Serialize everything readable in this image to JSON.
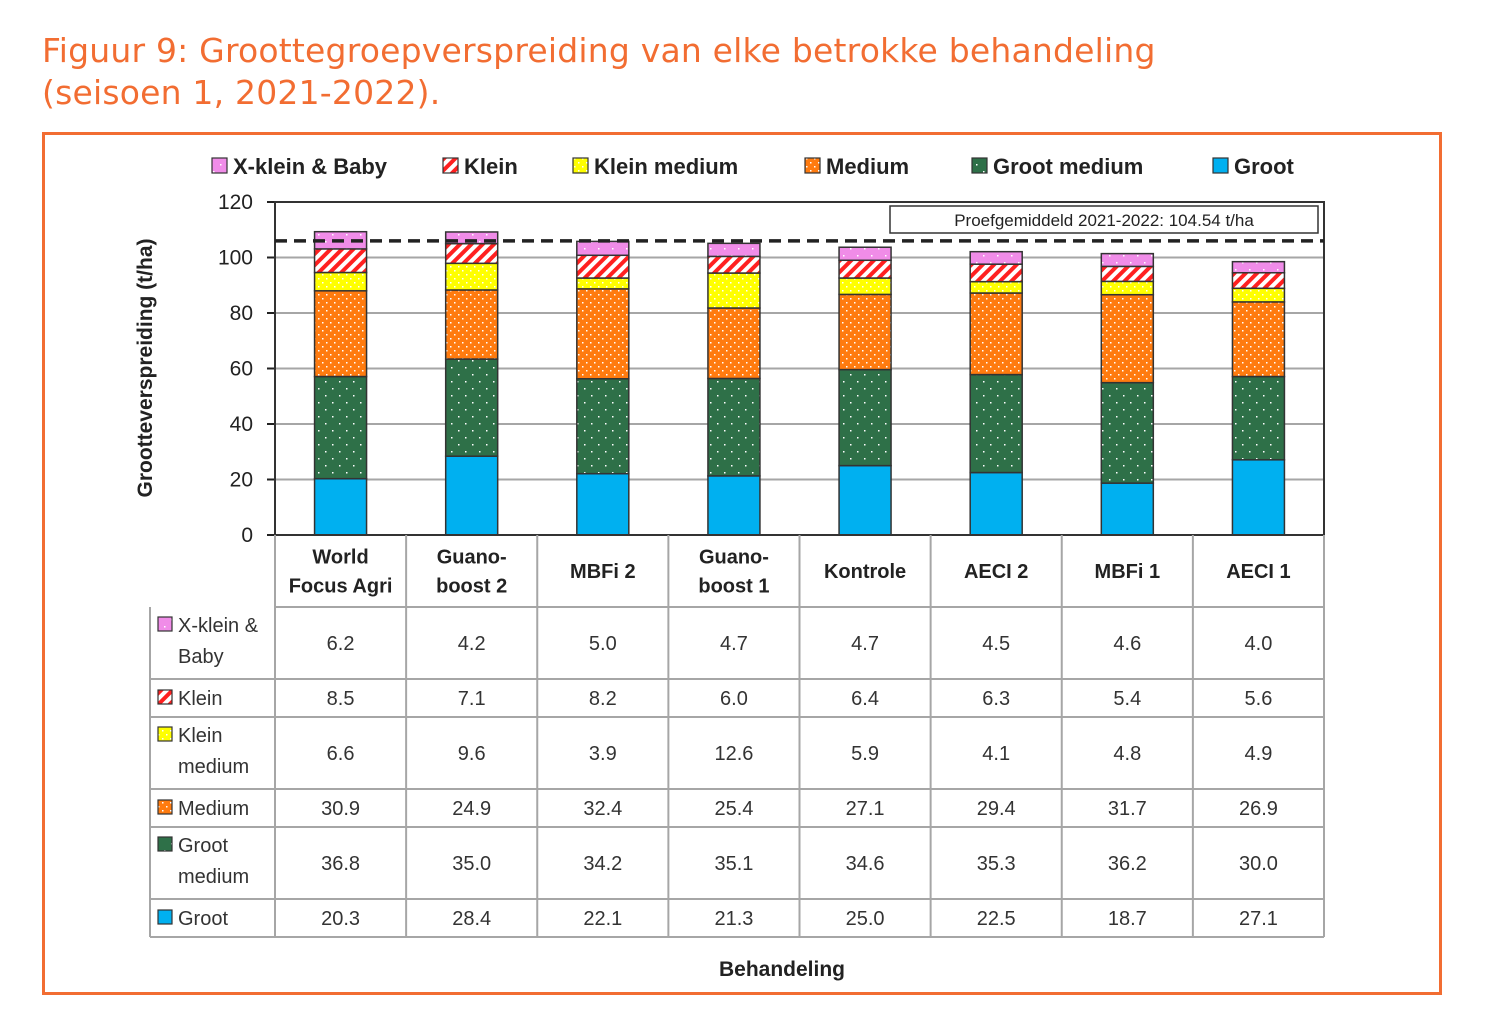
{
  "figure": {
    "title_line1": "Figuur 9: Groottegroepverspreiding van elke betrokke behandeling",
    "title_line2": "(seisoen 1, 2021-2022)."
  },
  "colors": {
    "accent": "#f26d32",
    "series": {
      "X-klein & Baby": "#f08ce8",
      "Klein": "#ff2020",
      "Klein medium": "#ffff00",
      "Medium": "#ff7b0f",
      "Groot medium": "#2e7048",
      "Groot": "#00b0f0"
    }
  },
  "chart_data": {
    "type": "bar",
    "stacked": true,
    "title": "",
    "xlabel": "Behandeling",
    "ylabel": "Grootteverspreiding (t/ha)",
    "ylim": [
      0,
      120
    ],
    "yticks": [
      0,
      20,
      40,
      60,
      80,
      100,
      120
    ],
    "grid": true,
    "legend_position": "top",
    "categories": [
      [
        "World",
        "Focus Agri"
      ],
      [
        "Guano-",
        "boost 2"
      ],
      [
        "MBFi 2"
      ],
      [
        "Guano-",
        "boost 1"
      ],
      [
        "Kontrole"
      ],
      [
        "AECI 2"
      ],
      [
        "MBFi 1"
      ],
      [
        "AECI 1"
      ]
    ],
    "series": [
      {
        "name": "Groot",
        "row_label": [
          "Groot"
        ],
        "pattern": "solid",
        "values": [
          20.3,
          28.4,
          22.1,
          21.3,
          25.0,
          22.5,
          18.7,
          27.1
        ]
      },
      {
        "name": "Groot medium",
        "row_label": [
          "Groot",
          "medium"
        ],
        "pattern": "dots-sparse",
        "values": [
          36.8,
          35.0,
          34.2,
          35.1,
          34.6,
          35.3,
          36.2,
          30.0
        ]
      },
      {
        "name": "Medium",
        "row_label": [
          "Medium"
        ],
        "pattern": "dots-dense",
        "values": [
          30.9,
          24.9,
          32.4,
          25.4,
          27.1,
          29.4,
          31.7,
          26.9
        ]
      },
      {
        "name": "Klein medium",
        "row_label": [
          "Klein",
          "medium"
        ],
        "pattern": "dots-dense",
        "values": [
          6.6,
          9.6,
          3.9,
          12.6,
          5.9,
          4.1,
          4.8,
          4.9
        ]
      },
      {
        "name": "Klein",
        "row_label": [
          "Klein"
        ],
        "pattern": "diagonal",
        "values": [
          8.5,
          7.1,
          8.2,
          6.0,
          6.4,
          6.3,
          5.4,
          5.6
        ]
      },
      {
        "name": "X-klein & Baby",
        "row_label": [
          "X-klein &",
          "Baby"
        ],
        "pattern": "dots-sparse",
        "values": [
          6.2,
          4.2,
          5.0,
          4.7,
          4.7,
          4.5,
          4.6,
          4.0
        ]
      }
    ],
    "legend_order": [
      "X-klein & Baby",
      "Klein",
      "Klein medium",
      "Medium",
      "Groot medium",
      "Groot"
    ],
    "table_row_order": [
      "X-klein & Baby",
      "Klein",
      "Klein medium",
      "Medium",
      "Groot medium",
      "Groot"
    ],
    "reference_line": {
      "label": "Proefgemiddeld 2021-2022: 104.54 t/ha",
      "value": 104.54,
      "style": "dashed"
    }
  }
}
